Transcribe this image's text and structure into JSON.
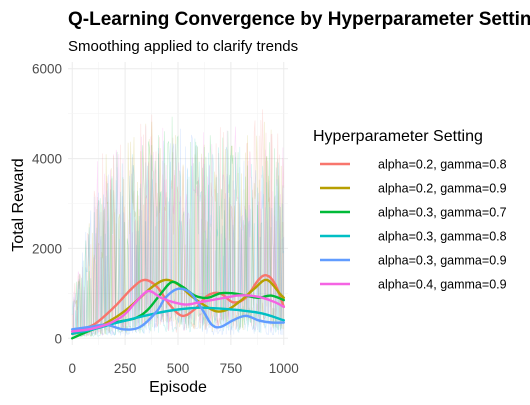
{
  "chart_data": {
    "type": "line",
    "title": "Q-Learning Convergence by Hyperparameter Setting",
    "subtitle": "Smoothing applied to clarify trends",
    "xlabel": "Episode",
    "ylabel": "Total Reward",
    "xlim": [
      -20,
      1020
    ],
    "ylim": [
      -150,
      6150
    ],
    "x_ticks": [
      0,
      250,
      500,
      750,
      1000
    ],
    "y_ticks": [
      0,
      2000,
      4000,
      6000
    ],
    "grid": true,
    "legend": {
      "title": "Hyperparameter Setting",
      "placement": "right"
    },
    "series": [
      {
        "name": "alpha=0.2, gamma=0.8",
        "color": "#F8766D",
        "x": [
          0,
          100,
          200,
          280,
          340,
          400,
          460,
          520,
          580,
          640,
          700,
          760,
          820,
          880,
          920,
          960,
          1000
        ],
        "y": [
          150,
          300,
          700,
          1100,
          1300,
          1150,
          750,
          500,
          650,
          950,
          1000,
          800,
          900,
          1300,
          1400,
          1200,
          700
        ]
      },
      {
        "name": "alpha=0.2, gamma=0.9",
        "color": "#B79F00",
        "x": [
          0,
          100,
          200,
          260,
          320,
          380,
          440,
          500,
          560,
          620,
          680,
          740,
          800,
          860,
          920,
          980,
          1000
        ],
        "y": [
          100,
          200,
          450,
          650,
          900,
          1150,
          1300,
          1200,
          950,
          750,
          600,
          650,
          850,
          1100,
          1300,
          1000,
          900
        ]
      },
      {
        "name": "alpha=0.3, gamma=0.7",
        "color": "#00BA38",
        "x": [
          0,
          100,
          200,
          300,
          360,
          420,
          470,
          520,
          580,
          640,
          700,
          760,
          820,
          880,
          940,
          1000
        ],
        "y": [
          0,
          200,
          350,
          450,
          650,
          1000,
          1250,
          1150,
          950,
          900,
          1000,
          1000,
          950,
          900,
          950,
          850
        ]
      },
      {
        "name": "alpha=0.3, gamma=0.8",
        "color": "#00BFC4",
        "x": [
          0,
          100,
          200,
          300,
          400,
          500,
          600,
          700,
          800,
          900,
          1000
        ],
        "y": [
          100,
          200,
          330,
          450,
          560,
          640,
          680,
          660,
          620,
          550,
          400
        ]
      },
      {
        "name": "alpha=0.3, gamma=0.9",
        "color": "#619CFF",
        "x": [
          0,
          80,
          160,
          240,
          320,
          400,
          440,
          500,
          560,
          620,
          660,
          700,
          760,
          820,
          880,
          940,
          1000
        ],
        "y": [
          200,
          250,
          300,
          200,
          250,
          600,
          900,
          1100,
          1000,
          600,
          300,
          250,
          400,
          500,
          400,
          350,
          350
        ]
      },
      {
        "name": "alpha=0.4, gamma=0.9",
        "color": "#F564E3",
        "x": [
          0,
          80,
          160,
          240,
          300,
          360,
          420,
          480,
          540,
          600,
          660,
          720,
          780,
          840,
          900,
          960,
          1000
        ],
        "y": [
          150,
          200,
          300,
          500,
          800,
          1050,
          900,
          800,
          750,
          800,
          850,
          900,
          950,
          950,
          900,
          800,
          700
        ]
      }
    ]
  }
}
